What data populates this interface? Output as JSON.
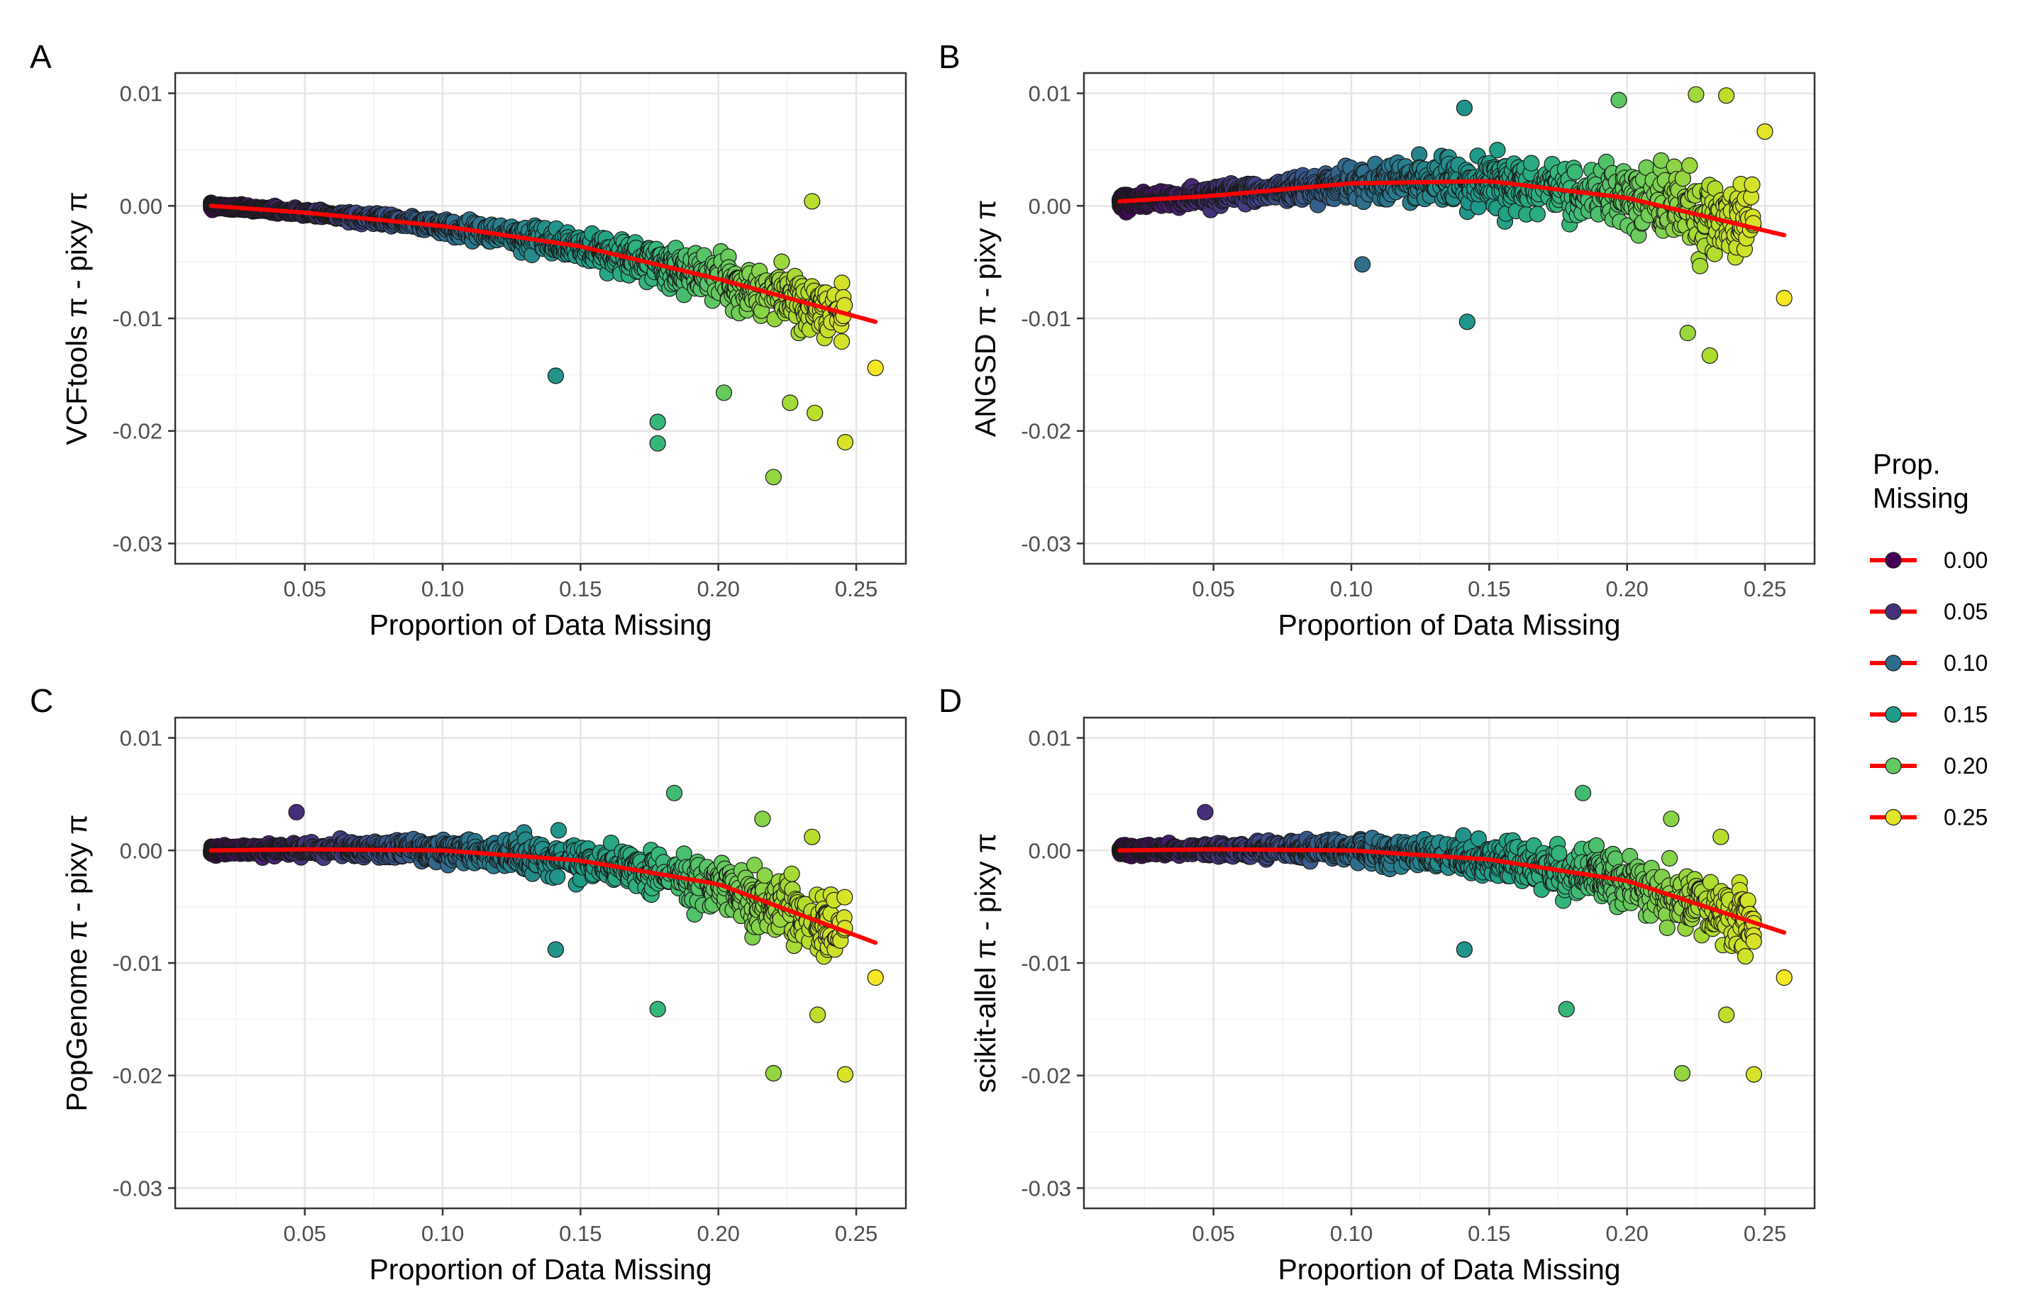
{
  "colors": {
    "fit_line": "#ff0000",
    "point_stroke": "#1a1a1a",
    "panel_border": "#333333",
    "grid_major": "#e6e6e6",
    "grid_minor": "#f3f3f3",
    "text_axis": "#4d4d4d",
    "text_title": "#000000",
    "colormap": "viridis"
  },
  "legend": {
    "title_line1": "Prop.",
    "title_line2": "Missing",
    "placement": "right",
    "entries": [
      {
        "label": "0.00",
        "value": 0.0
      },
      {
        "label": "0.05",
        "value": 0.05
      },
      {
        "label": "0.10",
        "value": 0.1
      },
      {
        "label": "0.15",
        "value": 0.15
      },
      {
        "label": "0.20",
        "value": 0.2
      },
      {
        "label": "0.25",
        "value": 0.25
      }
    ],
    "color_range": [
      0.015,
      0.26
    ]
  },
  "chart_data": [
    {
      "type": "scatter",
      "panel": "A",
      "xlabel": "Proportion of Data Missing",
      "ylabel": "VCFtools π - pixy π",
      "xlim": [
        0.003,
        0.268
      ],
      "ylim": [
        -0.0318,
        0.0118
      ],
      "x_ticks": [
        0.05,
        0.1,
        0.15,
        0.2,
        0.25
      ],
      "x_tick_labels": [
        "0.05",
        "0.10",
        "0.15",
        "0.20",
        "0.25"
      ],
      "y_ticks": [
        0.01,
        0.0,
        -0.01,
        -0.02,
        -0.03
      ],
      "y_tick_labels": [
        "0.01",
        "0.00",
        "-0.01",
        "-0.02",
        "-0.03"
      ],
      "grid": true,
      "trend": {
        "type": "loess",
        "x": [
          0.016,
          0.05,
          0.1,
          0.15,
          0.2,
          0.257
        ],
        "y": [
          0.0,
          -0.0006,
          -0.0018,
          -0.0036,
          -0.0065,
          -0.0103
        ]
      },
      "noise": {
        "base": 0.0001,
        "scale": 0.012
      },
      "highlight_points": [
        [
          0.141,
          -0.0151
        ],
        [
          0.178,
          -0.0192
        ],
        [
          0.178,
          -0.0211
        ],
        [
          0.22,
          -0.0241
        ],
        [
          0.246,
          -0.021
        ],
        [
          0.257,
          -0.0144
        ],
        [
          0.235,
          -0.0184
        ],
        [
          0.226,
          -0.0175
        ],
        [
          0.234,
          0.0004
        ],
        [
          0.202,
          -0.0166
        ]
      ]
    },
    {
      "type": "scatter",
      "panel": "B",
      "xlabel": "Proportion of Data Missing",
      "ylabel": "ANGSD π - pixy π",
      "xlim": [
        0.003,
        0.268
      ],
      "ylim": [
        -0.0318,
        0.0118
      ],
      "x_ticks": [
        0.05,
        0.1,
        0.15,
        0.2,
        0.25
      ],
      "x_tick_labels": [
        "0.05",
        "0.10",
        "0.15",
        "0.20",
        "0.25"
      ],
      "y_ticks": [
        0.01,
        0.0,
        -0.01,
        -0.02,
        -0.03
      ],
      "y_tick_labels": [
        "0.01",
        "0.00",
        "-0.01",
        "-0.02",
        "-0.03"
      ],
      "grid": true,
      "trend": {
        "type": "loess",
        "x": [
          0.016,
          0.05,
          0.1,
          0.15,
          0.2,
          0.257
        ],
        "y": [
          0.0004,
          0.0009,
          0.002,
          0.0022,
          0.0007,
          -0.0026
        ]
      },
      "noise": {
        "base": 0.0003,
        "scale": 0.017
      },
      "highlight_points": [
        [
          0.141,
          0.0087
        ],
        [
          0.197,
          0.0094
        ],
        [
          0.225,
          0.0099
        ],
        [
          0.236,
          0.0098
        ],
        [
          0.25,
          0.0066
        ],
        [
          0.257,
          -0.0082
        ],
        [
          0.142,
          -0.0103
        ],
        [
          0.222,
          -0.0113
        ],
        [
          0.23,
          -0.0133
        ],
        [
          0.104,
          -0.0052
        ]
      ]
    },
    {
      "type": "scatter",
      "panel": "C",
      "xlabel": "Proportion of Data Missing",
      "ylabel": "PopGenome π - pixy π",
      "xlim": [
        0.003,
        0.268
      ],
      "ylim": [
        -0.0318,
        0.0118
      ],
      "x_ticks": [
        0.05,
        0.1,
        0.15,
        0.2,
        0.25
      ],
      "x_tick_labels": [
        "0.05",
        "0.10",
        "0.15",
        "0.20",
        "0.25"
      ],
      "y_ticks": [
        0.01,
        0.0,
        -0.01,
        -0.02,
        -0.03
      ],
      "y_tick_labels": [
        "0.01",
        "0.00",
        "-0.01",
        "-0.02",
        "-0.03"
      ],
      "grid": true,
      "trend": {
        "type": "loess",
        "x": [
          0.016,
          0.05,
          0.1,
          0.15,
          0.2,
          0.257
        ],
        "y": [
          0.0,
          0.0001,
          0.0,
          -0.0009,
          -0.003,
          -0.0082
        ]
      },
      "noise": {
        "base": 0.0002,
        "scale": 0.013
      },
      "highlight_points": [
        [
          0.047,
          0.0034
        ],
        [
          0.184,
          0.0051
        ],
        [
          0.22,
          -0.0198
        ],
        [
          0.246,
          -0.0199
        ],
        [
          0.257,
          -0.0113
        ],
        [
          0.178,
          -0.0141
        ],
        [
          0.141,
          -0.0088
        ],
        [
          0.236,
          -0.0146
        ],
        [
          0.234,
          0.0012
        ],
        [
          0.216,
          0.0028
        ]
      ]
    },
    {
      "type": "scatter",
      "panel": "D",
      "xlabel": "Proportion of Data Missing",
      "ylabel": "scikit-allel π - pixy π",
      "xlim": [
        0.003,
        0.268
      ],
      "ylim": [
        -0.0318,
        0.0118
      ],
      "x_ticks": [
        0.05,
        0.1,
        0.15,
        0.2,
        0.25
      ],
      "x_tick_labels": [
        "0.05",
        "0.10",
        "0.15",
        "0.20",
        "0.25"
      ],
      "y_ticks": [
        0.01,
        0.0,
        -0.01,
        -0.02,
        -0.03
      ],
      "y_tick_labels": [
        "0.01",
        "0.00",
        "-0.01",
        "-0.02",
        "-0.03"
      ],
      "grid": true,
      "trend": {
        "type": "loess",
        "x": [
          0.016,
          0.05,
          0.1,
          0.15,
          0.2,
          0.257
        ],
        "y": [
          0.0,
          0.0001,
          0.0,
          -0.0008,
          -0.0027,
          -0.0073
        ]
      },
      "noise": {
        "base": 0.0002,
        "scale": 0.013
      },
      "highlight_points": [
        [
          0.047,
          0.0034
        ],
        [
          0.184,
          0.0051
        ],
        [
          0.22,
          -0.0198
        ],
        [
          0.246,
          -0.0199
        ],
        [
          0.257,
          -0.0113
        ],
        [
          0.178,
          -0.0141
        ],
        [
          0.141,
          -0.0088
        ],
        [
          0.236,
          -0.0146
        ],
        [
          0.234,
          0.0012
        ],
        [
          0.216,
          0.0028
        ]
      ]
    }
  ]
}
